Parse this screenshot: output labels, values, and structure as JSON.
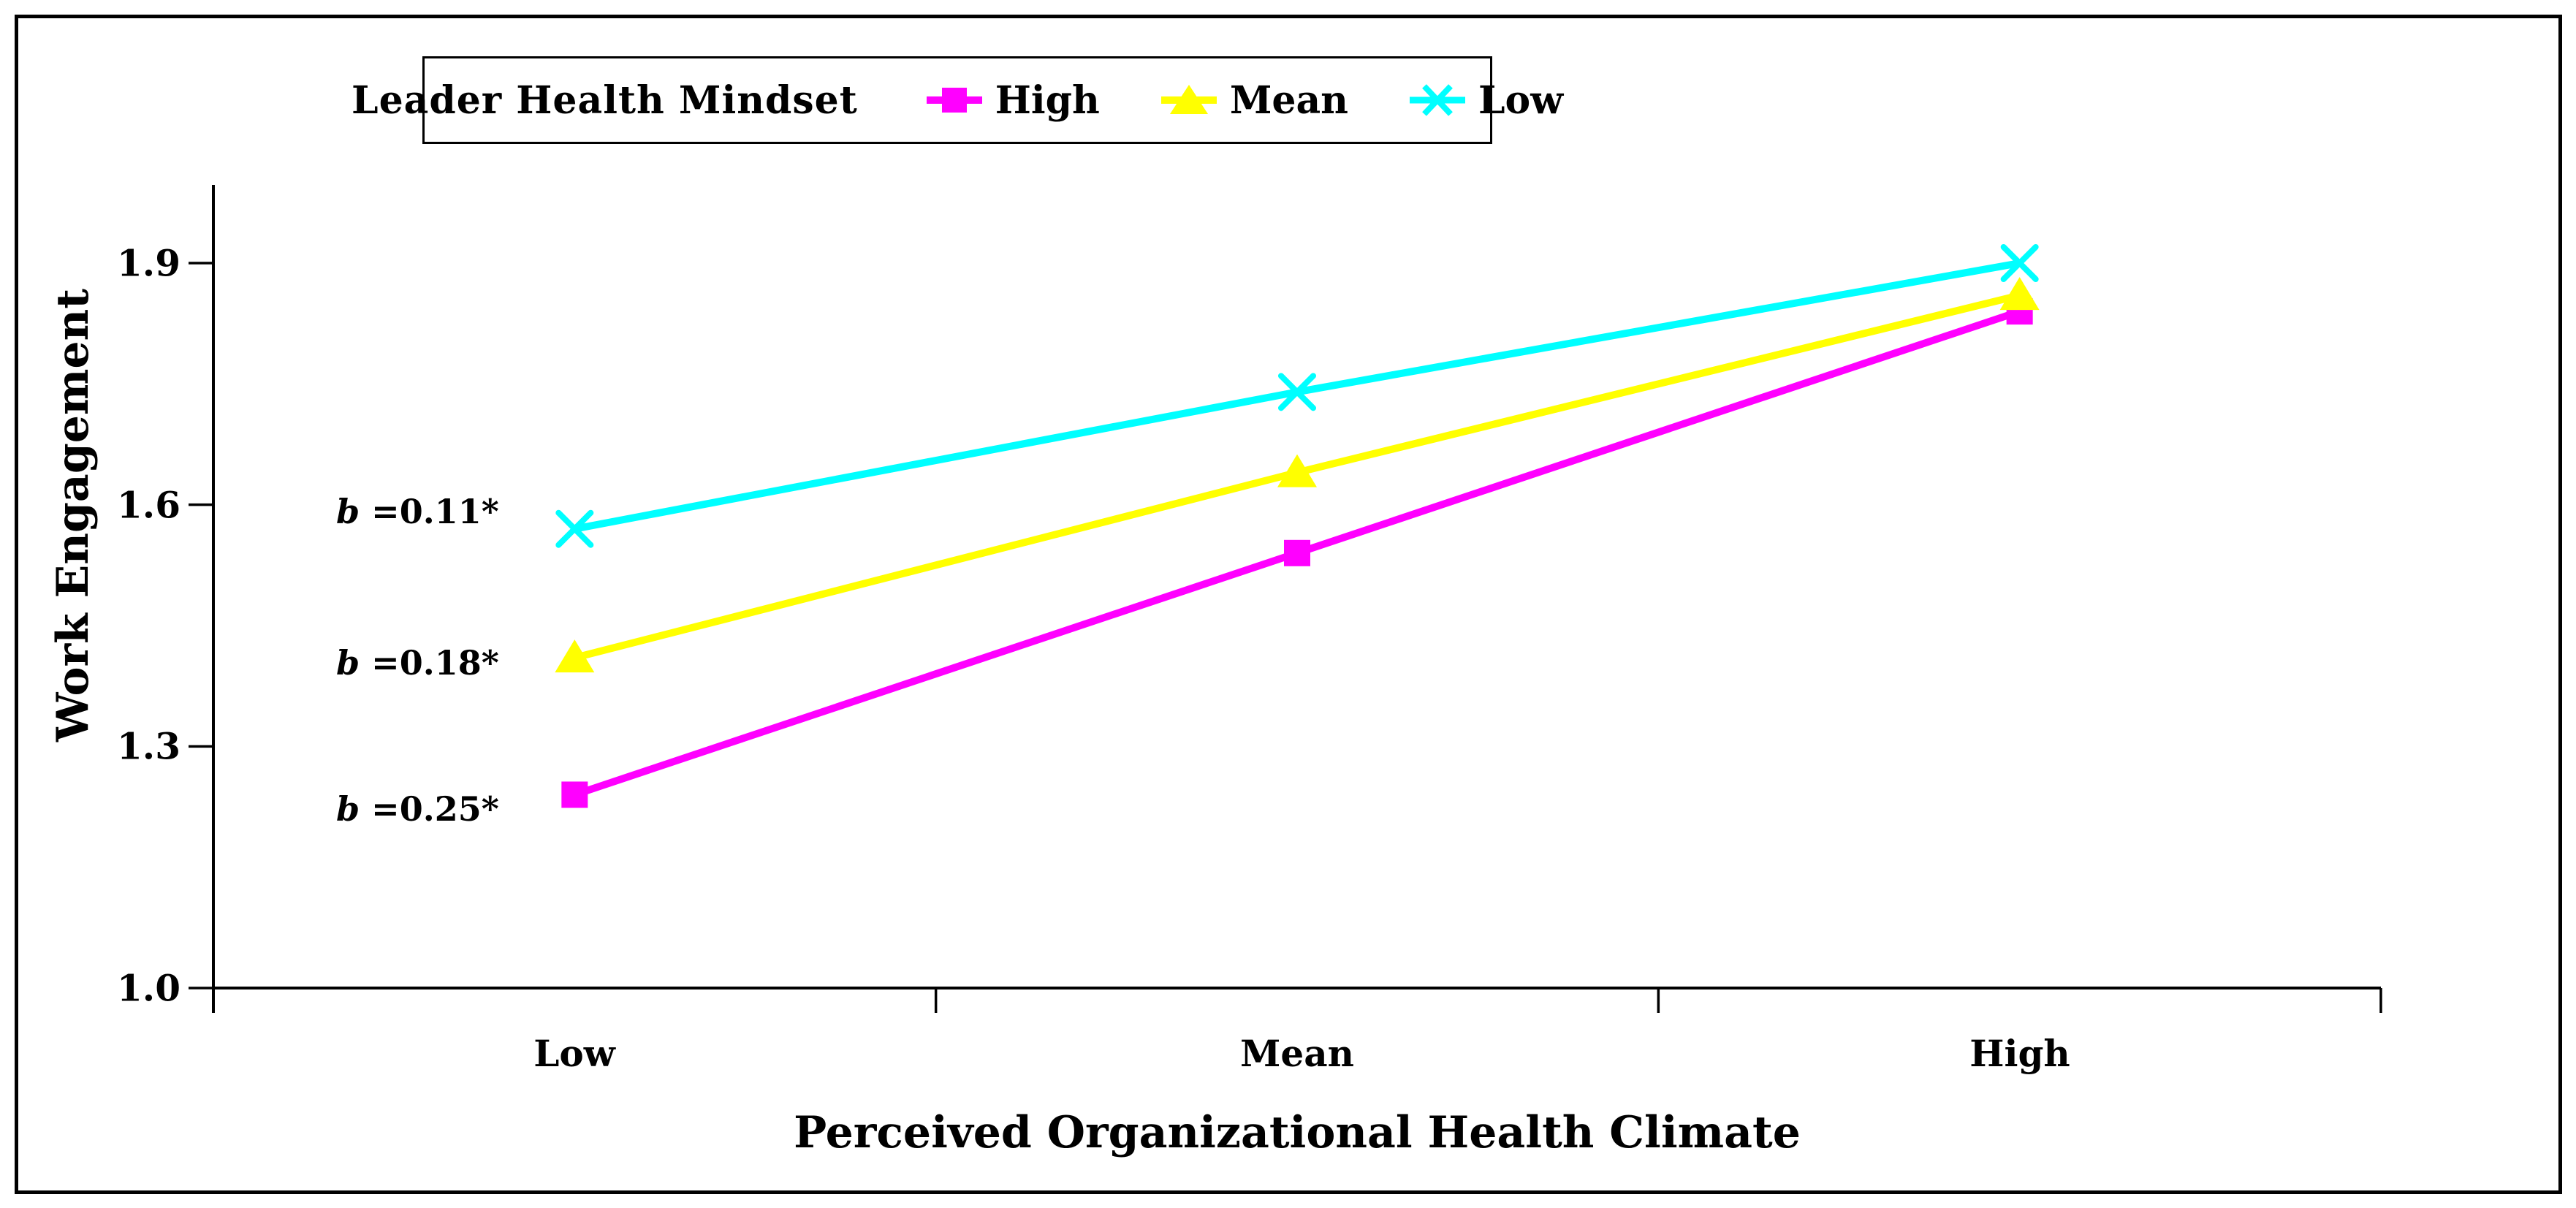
{
  "chart_data": {
    "type": "line",
    "title": "",
    "categories": [
      "Low",
      "Mean",
      "High"
    ],
    "series": [
      {
        "name": "High",
        "color": "#FF00FF",
        "marker": "square",
        "values": [
          1.24,
          1.54,
          1.84
        ],
        "slope_label": "b =0.25*"
      },
      {
        "name": "Mean",
        "color": "#FFFF00",
        "marker": "triangle",
        "values": [
          1.41,
          1.64,
          1.86
        ],
        "slope_label": "b =0.18*"
      },
      {
        "name": "Low",
        "color": "#00FFFF",
        "marker": "x",
        "values": [
          1.57,
          1.74,
          1.9
        ],
        "slope_label": "b =0.11*"
      }
    ],
    "xlabel": "Perceived Organizational Health Climate",
    "ylabel": "Work Engagement",
    "y_ticks": [
      "1.9",
      "1.6",
      "1.3",
      "1.0"
    ],
    "ylim": [
      1.0,
      2.0
    ],
    "grid": false,
    "legend": {
      "title": "Leader Health Mindset",
      "position": "top"
    },
    "annotations": [
      {
        "italic": "b",
        "rest": " =0.11*",
        "series": "Low"
      },
      {
        "italic": "b",
        "rest": " =0.18*",
        "series": "Mean"
      },
      {
        "italic": "b",
        "rest": " =0.25*",
        "series": "High"
      }
    ],
    "axis_color": "#000000",
    "background": "#FFFFFF"
  }
}
